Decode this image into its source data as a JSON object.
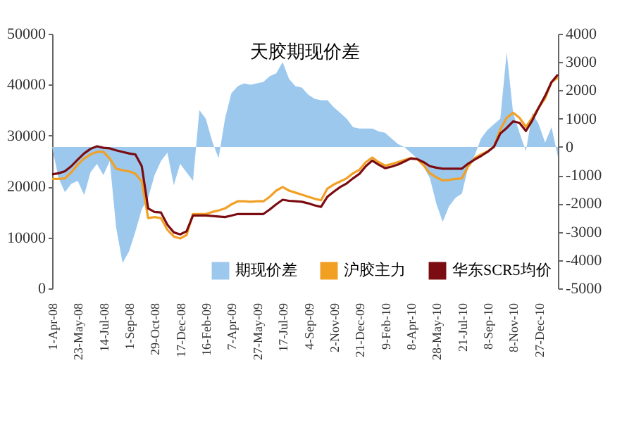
{
  "chart_data": {
    "type": "line",
    "title": "天胶期现价差",
    "categories": [
      "1-Apr-08",
      null,
      null,
      null,
      "23-May-08",
      null,
      null,
      null,
      "14-Jul-08",
      null,
      null,
      null,
      "1-Sep-08",
      null,
      null,
      null,
      "29-Oct-08",
      null,
      null,
      null,
      "17-Dec-08",
      null,
      null,
      null,
      "16-Feb-09",
      null,
      null,
      null,
      "7-Apr-09",
      null,
      null,
      null,
      "27-May-09",
      null,
      null,
      null,
      "17-Jul-09",
      null,
      null,
      null,
      "4-Sep-09",
      null,
      null,
      null,
      "2-Nov-09",
      null,
      null,
      null,
      "21-Dec-09",
      null,
      null,
      null,
      "9-Feb-10",
      null,
      null,
      null,
      "8-Apr-10",
      null,
      null,
      null,
      "28-May-10",
      null,
      null,
      null,
      "21-Jul-10",
      null,
      null,
      null,
      "8-Sep-10",
      null,
      null,
      null,
      "8-Nov-10",
      null,
      null,
      null,
      "27-Dec-10",
      null,
      null,
      null
    ],
    "series": [
      {
        "name": "期现价差",
        "type": "area",
        "axis": "y2",
        "color": "#9cc8ee",
        "values": [
          0,
          -1100,
          -1600,
          -1300,
          -1200,
          -1700,
          -900,
          -600,
          -1000,
          -500,
          -2850,
          -4100,
          -3700,
          -3000,
          -2200,
          -1800,
          -1000,
          -500,
          -200,
          -1350,
          -600,
          -900,
          -1200,
          1300,
          1000,
          200,
          -400,
          1000,
          1900,
          2150,
          2250,
          2200,
          2250,
          2300,
          2500,
          2600,
          3000,
          2400,
          2150,
          2100,
          1850,
          1700,
          1650,
          1650,
          1400,
          1200,
          1000,
          700,
          650,
          650,
          650,
          550,
          500,
          300,
          100,
          0,
          -200,
          -400,
          -700,
          -1100,
          -2000,
          -2650,
          -2100,
          -1800,
          -1650,
          -700,
          -300,
          300,
          600,
          800,
          1000,
          3350,
          1200,
          500,
          -150,
          1200,
          800,
          150,
          700,
          -350
        ]
      },
      {
        "name": "沪胶主力",
        "type": "line",
        "color": "#f2a024",
        "values": [
          21500,
          21500,
          21600,
          22800,
          24300,
          25500,
          26300,
          26800,
          26800,
          25500,
          23500,
          23200,
          23000,
          22500,
          21000,
          13800,
          14000,
          13800,
          11500,
          10200,
          9800,
          10500,
          14600,
          14600,
          14600,
          15000,
          15300,
          15700,
          16500,
          17100,
          17100,
          17000,
          17100,
          17100,
          18000,
          19200,
          19900,
          19200,
          18800,
          18400,
          18000,
          17600,
          17300,
          19600,
          20400,
          21000,
          21600,
          22600,
          23300,
          24800,
          25700,
          24800,
          24100,
          24400,
          24800,
          25200,
          25600,
          25400,
          24200,
          22600,
          21800,
          21200,
          21300,
          21500,
          21600,
          24000,
          25600,
          26300,
          26900,
          27800,
          31200,
          33500,
          34500,
          33500,
          31700,
          33500,
          35500,
          37300,
          40500,
          41400
        ]
      },
      {
        "name": "华东SCR5均价",
        "type": "line",
        "color": "#7a0c12",
        "values": [
          22400,
          22600,
          23000,
          24000,
          25300,
          26500,
          27400,
          27900,
          27600,
          27500,
          27100,
          26800,
          26500,
          26300,
          24000,
          15700,
          15000,
          14900,
          12500,
          11000,
          10600,
          11200,
          14300,
          14300,
          14300,
          14200,
          14100,
          14000,
          14300,
          14600,
          14600,
          14600,
          14600,
          14600,
          15500,
          16500,
          17400,
          17200,
          17100,
          17000,
          16700,
          16300,
          16000,
          18000,
          19000,
          19900,
          20600,
          21600,
          22500,
          24000,
          25100,
          24300,
          23600,
          23900,
          24300,
          24900,
          25500,
          25400,
          24800,
          24000,
          23700,
          23500,
          23500,
          23500,
          23500,
          24500,
          25300,
          26000,
          26800,
          27800,
          30400,
          31500,
          32800,
          32500,
          30900,
          33000,
          35500,
          37800,
          40500,
          42000
        ]
      }
    ],
    "ylim": [
      0,
      50000
    ],
    "yticks": [
      0,
      10000,
      20000,
      30000,
      40000,
      50000
    ],
    "y2lim": [
      -5000,
      4000
    ],
    "y2ticks": [
      -5000,
      -4000,
      -3000,
      -2000,
      -1000,
      0,
      1000,
      2000,
      3000,
      4000
    ],
    "legend": "bottom right",
    "grid": false
  }
}
